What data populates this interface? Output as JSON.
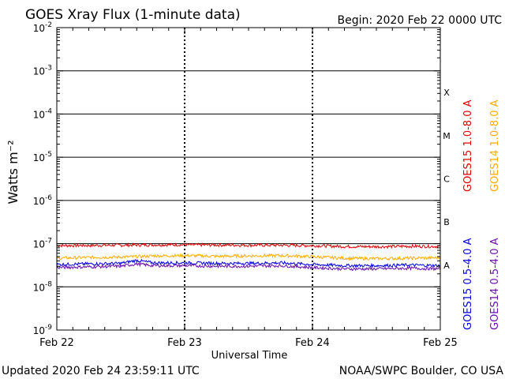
{
  "header": {
    "title": "GOES Xray Flux (1-minute data)",
    "begin": "Begin:  2020 Feb 22 0000 UTC"
  },
  "footer": {
    "updated": "Updated 2020 Feb 24 23:59:11 UTC",
    "source": "NOAA/SWPC Boulder, CO USA"
  },
  "chart_data": {
    "type": "line",
    "title": "GOES Xray Flux (1-minute data)",
    "xlabel": "Universal Time",
    "ylabel": "Watts m⁻²",
    "yscale": "log",
    "ylim": [
      1e-09,
      0.01
    ],
    "x_ticks": [
      "Feb 22",
      "Feb 23",
      "Feb 24",
      "Feb 25"
    ],
    "x": [
      0,
      0.25,
      0.5,
      0.625,
      0.75,
      1,
      1.25,
      1.5,
      1.75,
      2,
      2.25,
      2.5,
      2.75,
      3
    ],
    "y_ticks": [
      {
        "base": "10",
        "exp": "-2",
        "value": 0.01
      },
      {
        "base": "10",
        "exp": "-3",
        "value": 0.001
      },
      {
        "base": "10",
        "exp": "-4",
        "value": 0.0001
      },
      {
        "base": "10",
        "exp": "-5",
        "value": 1e-05
      },
      {
        "base": "10",
        "exp": "-6",
        "value": 1e-06
      },
      {
        "base": "10",
        "exp": "-7",
        "value": 1e-07
      },
      {
        "base": "10",
        "exp": "-8",
        "value": 1e-08
      },
      {
        "base": "10",
        "exp": "-9",
        "value": 1e-09
      }
    ],
    "flare_classes": [
      {
        "label": "X",
        "value": 0.000316
      },
      {
        "label": "M",
        "value": 3.16e-05
      },
      {
        "label": "C",
        "value": 3.16e-06
      },
      {
        "label": "B",
        "value": 3.16e-07
      },
      {
        "label": "A",
        "value": 3.16e-08
      }
    ],
    "threshold_lines": [
      0.001,
      0.0001,
      1e-05,
      1e-06,
      1e-07,
      1e-08
    ],
    "grid": "dashed vertical day lines",
    "legend_placement": "right, vertical",
    "series": [
      {
        "name": "GOES15 1.0-8.0 A",
        "color": "#e00000",
        "values": [
          9e-08,
          9.1e-08,
          9.2e-08,
          9.3e-08,
          9.4e-08,
          9.4e-08,
          9.3e-08,
          9.2e-08,
          9.2e-08,
          9e-08,
          8.6e-08,
          8.5e-08,
          8.7e-08,
          8.6e-08
        ]
      },
      {
        "name": "GOES14 1.0-8.0 A",
        "color": "#ffaa00",
        "values": [
          4.6e-08,
          4.8e-08,
          4.9e-08,
          5e-08,
          5.2e-08,
          5.3e-08,
          5.1e-08,
          5.2e-08,
          5.3e-08,
          5e-08,
          4.6e-08,
          4.5e-08,
          4.6e-08,
          4.7e-08
        ]
      },
      {
        "name": "GOES15 0.5-4.0 A",
        "color": "#0000e0",
        "values": [
          3.3e-08,
          3.4e-08,
          3.5e-08,
          4.1e-08,
          3.6e-08,
          3.6e-08,
          3.5e-08,
          3.5e-08,
          3.6e-08,
          3.3e-08,
          3.1e-08,
          3.1e-08,
          3.2e-08,
          3.1e-08
        ]
      },
      {
        "name": "GOES14 0.5-4.0 A",
        "color": "#6a0dad",
        "values": [
          2.8e-08,
          2.9e-08,
          3e-08,
          3.4e-08,
          3.1e-08,
          3.1e-08,
          3e-08,
          3e-08,
          3.1e-08,
          2.8e-08,
          2.6e-08,
          2.6e-08,
          2.7e-08,
          2.6e-08
        ]
      }
    ]
  }
}
